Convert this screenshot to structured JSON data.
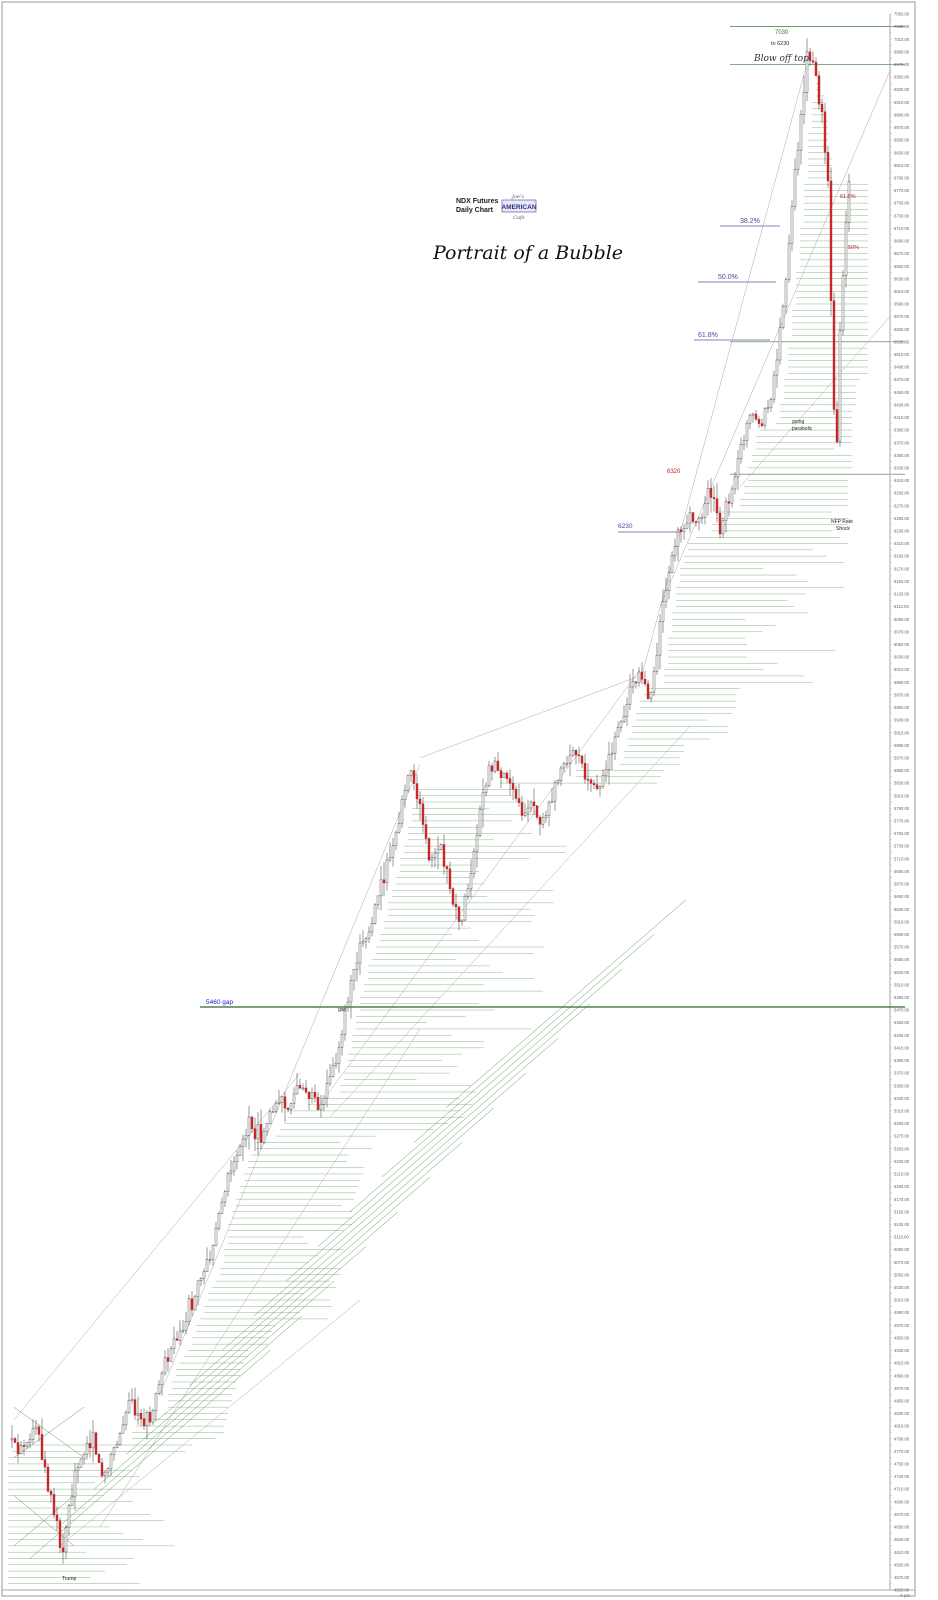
{
  "chart_data": {
    "type": "candlestick",
    "title": "Portrait of a Bubble",
    "subtitle_line1": "NDX  Futures",
    "subtitle_line2": "Daily Chart",
    "logo": {
      "top": "Joe's",
      "main": "AMERICAN",
      "bottom": "Cafe"
    },
    "ylim": [
      4550,
      7050
    ],
    "y_tick_step": 10,
    "y_label_step": 20,
    "footer_right": "6 pts",
    "annotations": {
      "top_price": "7030",
      "top_target": "to 6230",
      "blow_off": "Blow off top",
      "fib_382": "38.2%",
      "fib_500": "50.0%",
      "fib_618": "61.8%",
      "fib_618_right": "61.8%",
      "fib_50_right": "50%",
      "level_6320": "6320",
      "level_6230": "6230",
      "going_parabolic_1": "going",
      "going_parabolic_2": "parabolic",
      "nfp_1": "NFP Rate",
      "nfp_2": "Shock",
      "gap_5460": "5460 gap",
      "gap_small": "gap",
      "trump": "Trump"
    },
    "key_levels": [
      {
        "label": "5460 gap",
        "value": 5460
      },
      {
        "label": "6230",
        "value": 6230
      },
      {
        "label": "6320",
        "value": 6320
      },
      {
        "label": "7030",
        "value": 7030
      }
    ],
    "series_path": [
      [
        0,
        4780
      ],
      [
        8,
        4800
      ],
      [
        18,
        4770
      ],
      [
        28,
        4790
      ],
      [
        38,
        4810
      ],
      [
        48,
        4720
      ],
      [
        56,
        4660
      ],
      [
        62,
        4600
      ],
      [
        72,
        4710
      ],
      [
        82,
        4760
      ],
      [
        92,
        4800
      ],
      [
        102,
        4730
      ],
      [
        110,
        4760
      ],
      [
        120,
        4800
      ],
      [
        130,
        4850
      ],
      [
        140,
        4830
      ],
      [
        150,
        4820
      ],
      [
        160,
        4880
      ],
      [
        170,
        4930
      ],
      [
        180,
        4950
      ],
      [
        190,
        5000
      ],
      [
        200,
        5040
      ],
      [
        210,
        5070
      ],
      [
        220,
        5150
      ],
      [
        230,
        5210
      ],
      [
        240,
        5250
      ],
      [
        250,
        5290
      ],
      [
        260,
        5270
      ],
      [
        270,
        5300
      ],
      [
        280,
        5330
      ],
      [
        290,
        5320
      ],
      [
        300,
        5350
      ],
      [
        310,
        5340
      ],
      [
        320,
        5310
      ],
      [
        330,
        5360
      ],
      [
        340,
        5420
      ],
      [
        350,
        5500
      ],
      [
        360,
        5560
      ],
      [
        370,
        5600
      ],
      [
        380,
        5660
      ],
      [
        390,
        5720
      ],
      [
        400,
        5780
      ],
      [
        410,
        5860
      ],
      [
        420,
        5790
      ],
      [
        430,
        5700
      ],
      [
        440,
        5740
      ],
      [
        450,
        5660
      ],
      [
        460,
        5600
      ],
      [
        470,
        5680
      ],
      [
        480,
        5780
      ],
      [
        490,
        5860
      ],
      [
        500,
        5850
      ],
      [
        510,
        5830
      ],
      [
        520,
        5780
      ],
      [
        530,
        5800
      ],
      [
        540,
        5760
      ],
      [
        550,
        5790
      ],
      [
        560,
        5840
      ],
      [
        570,
        5880
      ],
      [
        580,
        5870
      ],
      [
        590,
        5830
      ],
      [
        600,
        5820
      ],
      [
        610,
        5880
      ],
      [
        620,
        5920
      ],
      [
        630,
        5980
      ],
      [
        640,
        6000
      ],
      [
        650,
        5960
      ],
      [
        660,
        6080
      ],
      [
        670,
        6180
      ],
      [
        680,
        6230
      ],
      [
        690,
        6250
      ],
      [
        700,
        6240
      ],
      [
        710,
        6300
      ],
      [
        720,
        6230
      ],
      [
        730,
        6290
      ],
      [
        740,
        6350
      ],
      [
        750,
        6420
      ],
      [
        760,
        6400
      ],
      [
        770,
        6430
      ],
      [
        780,
        6540
      ],
      [
        790,
        6700
      ],
      [
        800,
        6880
      ],
      [
        808,
        6990
      ],
      [
        815,
        6960
      ],
      [
        822,
        6880
      ],
      [
        828,
        6780
      ],
      [
        832,
        6520
      ],
      [
        836,
        6320
      ],
      [
        840,
        6540
      ],
      [
        846,
        6720
      ],
      [
        850,
        6800
      ]
    ]
  }
}
